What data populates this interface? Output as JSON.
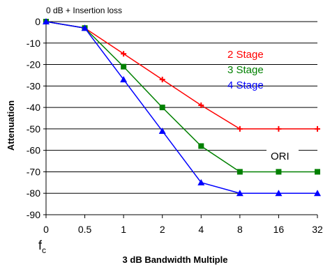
{
  "chart_data": {
    "type": "line",
    "top_note": "0 dB + Insertion loss",
    "ylabel": "Attenuation",
    "xlabel": "3 dB Bandwidth Multiple",
    "fc_label": "f",
    "fc_subscript": "c",
    "ori_label": "ORI",
    "ylim": [
      -90,
      0
    ],
    "yticks": [
      "0",
      "-10",
      "-20",
      "-30",
      "-40",
      "-50",
      "-60",
      "-70",
      "-80",
      "-90"
    ],
    "x": [
      "0",
      "0.5",
      "1",
      "2",
      "4",
      "8",
      "16",
      "32"
    ],
    "grid": "horizontal",
    "legend_position": "right",
    "series": [
      {
        "name": "2 Stage",
        "color": "#ff0000",
        "marker": "cross",
        "values": [
          0,
          -3,
          -15,
          -27,
          -39,
          -50,
          -50,
          -50
        ]
      },
      {
        "name": "3 Stage",
        "color": "#008000",
        "marker": "square",
        "values": [
          0,
          -3,
          -21,
          -40,
          -58,
          -70,
          -70,
          -70
        ]
      },
      {
        "name": "4 Stage",
        "color": "#0000ff",
        "marker": "triangle",
        "values": [
          0,
          -3,
          -27,
          -51,
          -75,
          -80,
          -80,
          -80
        ]
      }
    ]
  }
}
